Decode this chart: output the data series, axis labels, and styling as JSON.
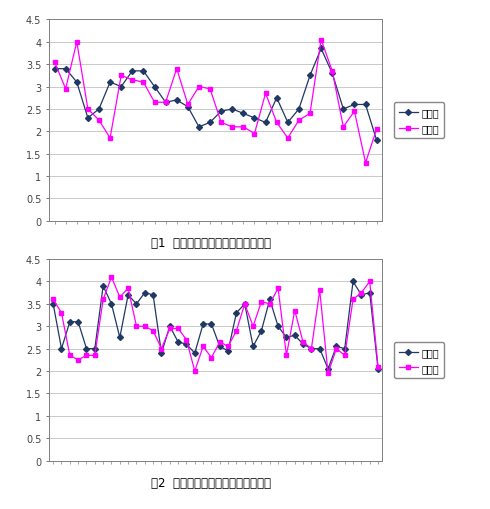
{
  "chart1": {
    "title": "图1  民族预科生学年平均总学分绩点",
    "series1_label": "学年一",
    "series2_label": "学年二",
    "series1_color": "#1f3864",
    "series2_color": "#ff00ff",
    "series1": [
      3.4,
      3.4,
      3.1,
      2.3,
      2.5,
      3.1,
      3.0,
      3.35,
      3.35,
      3.0,
      2.65,
      2.7,
      2.55,
      2.1,
      2.2,
      2.45,
      2.5,
      2.4,
      2.3,
      2.2,
      2.75,
      2.2,
      2.5,
      3.25,
      3.85,
      3.3,
      2.5,
      2.6,
      2.6,
      1.8
    ],
    "series2": [
      3.55,
      2.95,
      4.0,
      2.5,
      2.25,
      1.85,
      3.25,
      3.15,
      3.1,
      2.65,
      2.65,
      3.4,
      2.6,
      3.0,
      2.95,
      2.2,
      2.1,
      2.1,
      1.95,
      2.85,
      2.2,
      1.85,
      2.25,
      2.4,
      4.05,
      3.35,
      2.1,
      2.45,
      1.3,
      2.05
    ],
    "ylim": [
      0,
      4.5
    ],
    "yticks": [
      0,
      0.5,
      1.0,
      1.5,
      2.0,
      2.5,
      3.0,
      3.5,
      4.0,
      4.5
    ]
  },
  "chart2": {
    "title": "图2  普通班学生学年平均总学分绩点",
    "series1_label": "学年一",
    "series2_label": "学年二",
    "series1_color": "#1f3864",
    "series2_color": "#ff00ff",
    "series1": [
      3.5,
      2.5,
      3.1,
      3.1,
      2.5,
      2.5,
      3.9,
      3.5,
      2.75,
      3.7,
      3.5,
      3.75,
      3.7,
      2.4,
      3.0,
      2.65,
      2.6,
      2.4,
      3.05,
      3.05,
      2.55,
      2.45,
      3.3,
      3.5,
      2.55,
      2.9,
      3.6,
      3.0,
      2.75,
      2.8,
      2.6,
      2.5,
      2.5,
      2.05,
      2.55,
      2.5,
      4.0,
      3.7,
      3.75,
      2.05
    ],
    "series2": [
      3.6,
      3.3,
      2.35,
      2.25,
      2.35,
      2.35,
      3.6,
      4.1,
      3.65,
      3.85,
      3.0,
      3.0,
      2.9,
      2.5,
      2.95,
      2.95,
      2.7,
      2.0,
      2.55,
      2.3,
      2.65,
      2.55,
      2.9,
      3.5,
      3.0,
      3.55,
      3.5,
      3.85,
      2.35,
      3.35,
      2.65,
      2.5,
      3.8,
      1.95,
      2.5,
      2.35,
      3.6,
      3.75,
      4.0,
      2.1
    ],
    "ylim": [
      0,
      4.5
    ],
    "yticks": [
      0,
      0.5,
      1.0,
      1.5,
      2.0,
      2.5,
      3.0,
      3.5,
      4.0,
      4.5
    ]
  },
  "bg_color": "#ffffff",
  "axis_color": "#808080",
  "grid_color": "#c0c0c0"
}
